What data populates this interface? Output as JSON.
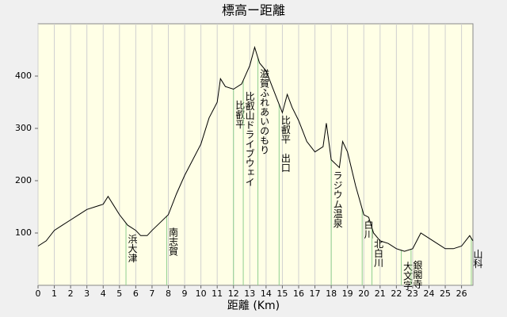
{
  "chart_data": {
    "type": "line",
    "title": "標高ー距離",
    "x_label": "距離 (Km)",
    "x": [
      0,
      0.5,
      1,
      1.5,
      2,
      2.5,
      3,
      3.5,
      4,
      4.3,
      4.6,
      5,
      5.5,
      6,
      6.3,
      6.7,
      7,
      7.5,
      8,
      8.5,
      9,
      9.5,
      10,
      10.5,
      11,
      11.2,
      11.5,
      12,
      12.5,
      13,
      13.3,
      13.6,
      14,
      14.5,
      15,
      15.3,
      15.6,
      16,
      16.5,
      17,
      17.5,
      17.7,
      18,
      18.5,
      18.7,
      19,
      19.5,
      20,
      20.3,
      20.6,
      21,
      21.5,
      22,
      22.5,
      23,
      23.5,
      24,
      24.5,
      25,
      25.5,
      26,
      26.5,
      26.7
    ],
    "series": [
      {
        "color": "#000000",
        "values": [
          75,
          85,
          105,
          115,
          125,
          135,
          145,
          150,
          155,
          170,
          155,
          135,
          115,
          105,
          95,
          95,
          105,
          120,
          135,
          175,
          210,
          240,
          270,
          320,
          350,
          395,
          380,
          375,
          385,
          420,
          455,
          425,
          410,
          370,
          330,
          365,
          340,
          315,
          275,
          255,
          265,
          310,
          240,
          225,
          275,
          255,
          190,
          135,
          130,
          100,
          85,
          80,
          70,
          65,
          70,
          100,
          90,
          80,
          70,
          70,
          75,
          95,
          85
        ]
      }
    ],
    "markers": [
      {
        "x": 5.4,
        "label": "浜大津"
      },
      {
        "x": 7.9,
        "label": "南志賀"
      },
      {
        "x": 12.0,
        "label": "比叡平"
      },
      {
        "x": 12.6,
        "label": "比叡山ドライブウェイ"
      },
      {
        "x": 13.5,
        "label": "滋賀ふれあいのもり"
      },
      {
        "x": 14.8,
        "label": "比叡平　出口"
      },
      {
        "x": 18.0,
        "label": "ラジウム温泉"
      },
      {
        "x": 19.9,
        "label": "白川"
      },
      {
        "x": 20.5,
        "label": "北白川"
      },
      {
        "x": 22.3,
        "label": "大文字"
      },
      {
        "x": 22.9,
        "label": "銀閣寺"
      },
      {
        "x": 26.6,
        "label": "山科"
      }
    ],
    "marker_color": "#8fcf8f",
    "xlim": [
      0,
      26.7
    ],
    "ylim": [
      0,
      500
    ],
    "xticks": [
      0,
      1,
      2,
      3,
      4,
      5,
      6,
      7,
      8,
      9,
      10,
      11,
      12,
      13,
      14,
      15,
      16,
      17,
      18,
      19,
      20,
      21,
      22,
      23,
      24,
      25,
      26
    ],
    "yticks": [
      100,
      200,
      300,
      400
    ],
    "grid": true
  }
}
